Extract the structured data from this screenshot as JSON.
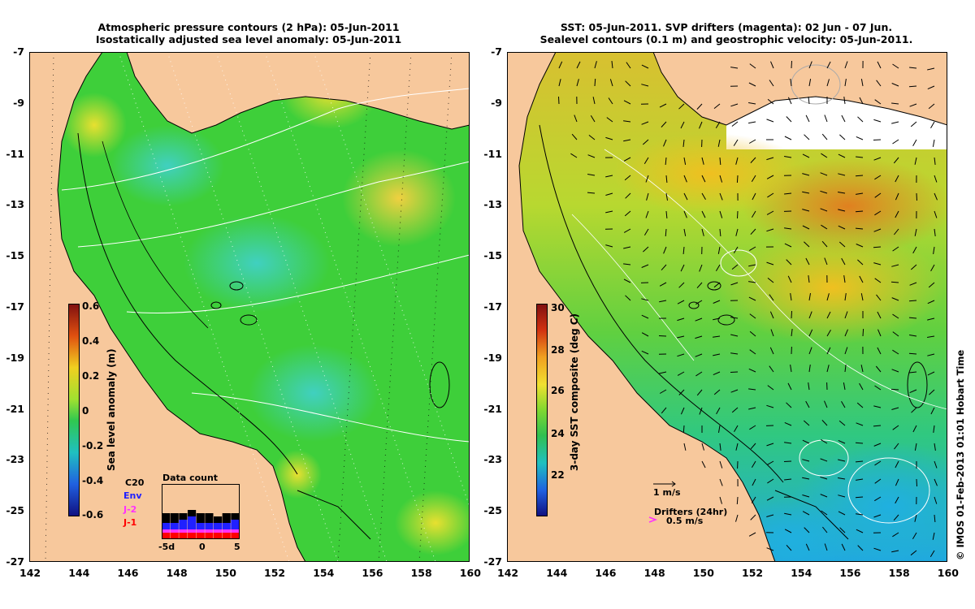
{
  "left_panel": {
    "title_line1": "Atmospheric pressure contours (2 hPa): 05-Jun-2011",
    "title_line2": "Isostatically adjusted sea level anomaly: 05-Jun-2011",
    "colorbar": {
      "label": "Sea level anomaly (m)",
      "ticks": [
        "0.6",
        "0.4",
        "0.2",
        "0",
        "-0.2",
        "-0.4",
        "-0.6"
      ]
    },
    "legend": {
      "items": [
        {
          "label": "C20",
          "color": "#000000"
        },
        {
          "label": "Env",
          "color": "#2020ff"
        },
        {
          "label": "J-2",
          "color": "#ff30ff"
        },
        {
          "label": "J-1",
          "color": "#ff0000"
        }
      ],
      "histogram_title": "Data count",
      "histogram_ticks": [
        "-5d",
        "0",
        "5"
      ],
      "histogram_values": [
        [
          3,
          2,
          1,
          2
        ],
        [
          3,
          2,
          1,
          2
        ],
        [
          2,
          3,
          1,
          2
        ],
        [
          2,
          4,
          1,
          2
        ],
        [
          3,
          2,
          1,
          2
        ],
        [
          3,
          2,
          1,
          2
        ],
        [
          2,
          2,
          1,
          2
        ],
        [
          3,
          2,
          1,
          2
        ],
        [
          2,
          3,
          1,
          2
        ]
      ]
    }
  },
  "right_panel": {
    "title_line1": "SST: 05-Jun-2011. SVP drifters (magenta): 02 Jun - 07 Jun.",
    "title_line2": "Sealevel contours (0.1 m) and geostrophic velocity: 05-Jun-2011.",
    "colorbar": {
      "label": "3-day SST composite (deg C)",
      "ticks": [
        "30",
        "28",
        "26",
        "24",
        "22"
      ]
    },
    "velocity_key": "1 m/s",
    "drifters_label": "Drifters (24hr)",
    "drifters_key": "0.5 m/s"
  },
  "axes": {
    "y_ticks": [
      "-7",
      "-9",
      "-11",
      "-13",
      "-15",
      "-17",
      "-19",
      "-21",
      "-23",
      "-25",
      "-27"
    ],
    "x_ticks": [
      "142",
      "144",
      "146",
      "148",
      "150",
      "152",
      "154",
      "156",
      "158",
      "160"
    ]
  },
  "credit": "© IMOS 01-Feb-2013 01:01 Hobart Time",
  "colors": {
    "land": "#f7c89c",
    "ocean_mid": "#3ecf3a",
    "ocean_low": "#2ec8a0",
    "ocean_high": "#c8e030",
    "warm": "#e08a20",
    "cool": "#2090e0"
  }
}
